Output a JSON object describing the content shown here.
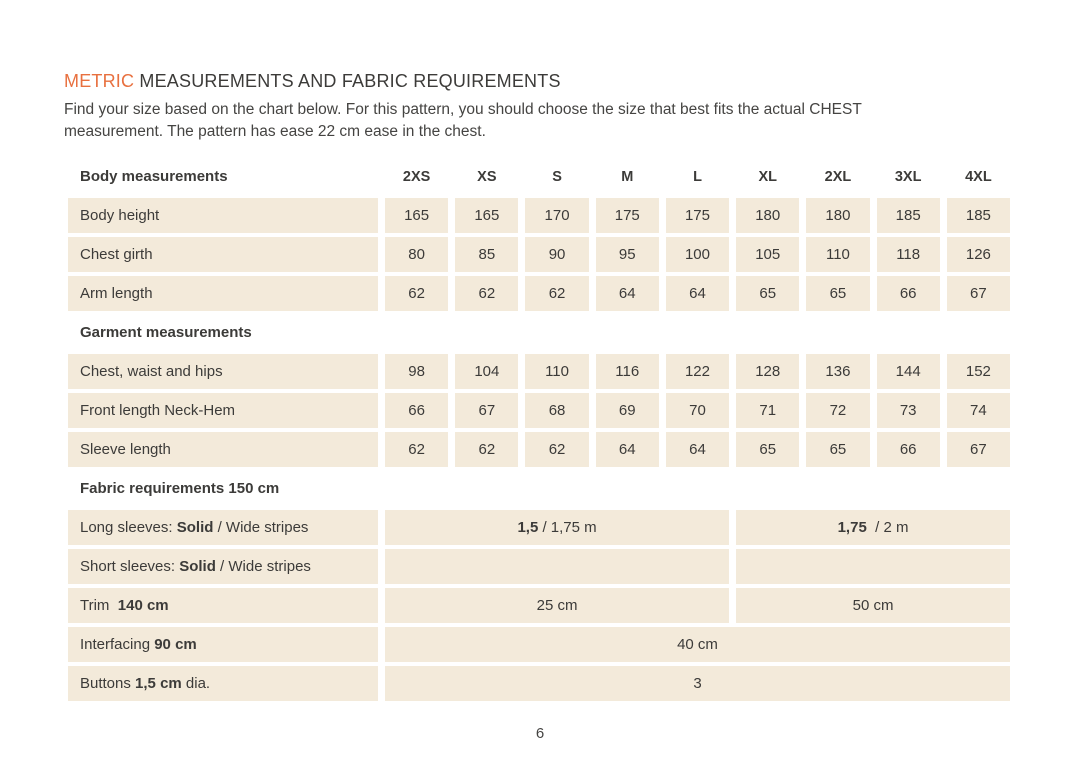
{
  "colors": {
    "accent_orange": "#E8703F",
    "cell_background": "#F3EADA",
    "text_dark": "#3C3B39"
  },
  "header": {
    "title_accent": "METRIC",
    "title_rest": " MEASUREMENTS AND FABRIC REQUIREMENTS",
    "intro_line1": "Find your size based on the chart below. For this pattern, you should choose the size that best fits the actual CHEST",
    "intro_line2": "measurement. The pattern has ease 22 cm ease in the chest."
  },
  "table": {
    "body_section_label": "Body measurements",
    "sizes": [
      "2XS",
      "XS",
      "S",
      "M",
      "L",
      "XL",
      "2XL",
      "3XL",
      "4XL"
    ],
    "body_rows": [
      {
        "label": "Body height",
        "values": [
          "165",
          "165",
          "170",
          "175",
          "175",
          "180",
          "180",
          "185",
          "185"
        ]
      },
      {
        "label": "Chest girth",
        "values": [
          "80",
          "85",
          "90",
          "95",
          "100",
          "105",
          "110",
          "118",
          "126"
        ]
      },
      {
        "label": "Arm length",
        "values": [
          "62",
          "62",
          "62",
          "64",
          "64",
          "65",
          "65",
          "66",
          "67"
        ]
      }
    ],
    "garment_section_label": "Garment measurements",
    "garment_rows": [
      {
        "label": "Chest, waist and hips",
        "values": [
          "98",
          "104",
          "110",
          "116",
          "122",
          "128",
          "136",
          "144",
          "152"
        ]
      },
      {
        "label": "Front length Neck-Hem",
        "values": [
          "66",
          "67",
          "68",
          "69",
          "70",
          "71",
          "72",
          "73",
          "74"
        ]
      },
      {
        "label": "Sleeve length",
        "values": [
          "62",
          "62",
          "62",
          "64",
          "64",
          "65",
          "65",
          "66",
          "67"
        ]
      }
    ],
    "fabric_section_label": "Fabric requirements 150 cm",
    "fabric_rows": {
      "long_sleeves": {
        "label_prefix": "Long sleeves: ",
        "label_bold": "Solid",
        "label_suffix": " / Wide stripes",
        "left_bold": "1,5",
        "left_rest": " / 1,75 m",
        "right_bold": "1,75",
        "right_rest": "  / 2 m"
      },
      "short_sleeves": {
        "label_prefix": "Short sleeves: ",
        "label_bold": "Solid",
        "label_suffix": " / Wide stripes",
        "left_text": "",
        "right_text": ""
      },
      "trim": {
        "label_prefix": "Trim  ",
        "label_bold": "140 cm",
        "label_suffix": "",
        "left_text": "25 cm",
        "right_text": "50 cm"
      },
      "interfacing": {
        "label_prefix": "Interfacing ",
        "label_bold": "90 cm",
        "label_suffix": "",
        "full_text": "40 cm"
      },
      "buttons": {
        "label_prefix": "Buttons ",
        "label_bold": "1,5 cm",
        "label_suffix": " dia.",
        "full_text": "3"
      }
    }
  },
  "footer": {
    "page_number": "6"
  }
}
